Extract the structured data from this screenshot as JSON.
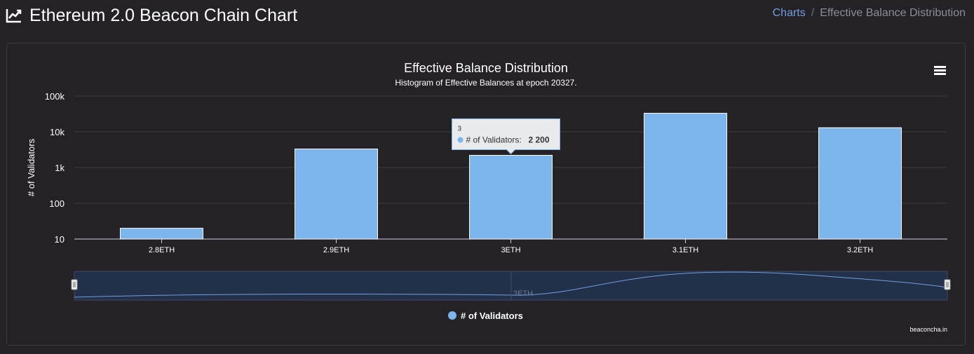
{
  "header": {
    "title": "Ethereum 2.0 Beacon Chain Chart",
    "title_icon": "chart-line-icon",
    "breadcrumb": {
      "link": "Charts",
      "separator": "/",
      "current": "Effective Balance Distribution"
    }
  },
  "chart_menu_icon": "hamburger-menu-icon",
  "colors": {
    "bar": "#7cb5ec",
    "background": "#252227",
    "accent_link": "#6f9fe0"
  },
  "chart_data": {
    "type": "bar",
    "title": "Effective Balance Distribution",
    "subtitle": "Histogram of Effective Balances at epoch 20327.",
    "ylabel": "# of Validators",
    "xlabel": "",
    "yscale": "log",
    "ylim": [
      10,
      100000
    ],
    "yticks": [
      "10",
      "100",
      "1k",
      "10k",
      "100k"
    ],
    "grid": true,
    "categories": [
      "2.8ETH",
      "2.9ETH",
      "3ETH",
      "3.1ETH",
      "3.2ETH"
    ],
    "series": [
      {
        "name": "# of Validators",
        "values": [
          20,
          3300,
          2200,
          33000,
          13000
        ]
      }
    ],
    "tooltip": {
      "header": "3",
      "label": "# of Validators:",
      "value": "2 200"
    },
    "navigator_label": "3ETH",
    "legend_position": "bottom-center",
    "credits": "beaconcha.in"
  }
}
